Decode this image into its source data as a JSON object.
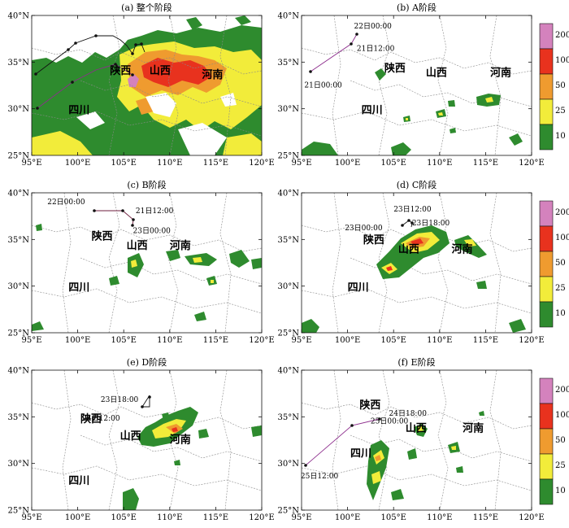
{
  "colors": {
    "c10": "#2e8b2e",
    "c25": "#f2ec3a",
    "c50": "#ef9b2f",
    "c100": "#e8321e",
    "c200": "#d482bd",
    "border": "#8a8a8a",
    "track_black": "#111111",
    "track_purple": "#8d2e8d"
  },
  "xticks": [
    "95°E",
    "100°E",
    "105°E",
    "110°E",
    "115°E",
    "120°E"
  ],
  "yticks": [
    "40°N",
    "35°N",
    "30°N",
    "25°N"
  ],
  "colorbar_labels": [
    "200",
    "100",
    "50",
    "25",
    "10"
  ],
  "panels": [
    {
      "title": "(a) 整个阶段",
      "labels": [
        {
          "t": "陕西",
          "lon": 103.5,
          "lat": 33.7
        },
        {
          "t": "山西",
          "lon": 107.8,
          "lat": 33.7
        },
        {
          "t": "河南",
          "lon": 113.5,
          "lat": 33.3
        },
        {
          "t": "四川",
          "lon": 99.0,
          "lat": 29.5
        }
      ],
      "time_labels": []
    },
    {
      "title": "(b) A阶段",
      "labels": [
        {
          "t": "陕西",
          "lon": 104.0,
          "lat": 34.0
        },
        {
          "t": "山西",
          "lon": 108.5,
          "lat": 33.5
        },
        {
          "t": "河南",
          "lon": 115.5,
          "lat": 33.5
        },
        {
          "t": "四川",
          "lon": 101.5,
          "lat": 29.5
        }
      ],
      "time_labels": [
        {
          "t": "22日00:00",
          "lon": 100.7,
          "lat": 38.6
        },
        {
          "t": "21日12:00",
          "lon": 101.0,
          "lat": 36.2
        },
        {
          "t": "21日00:00",
          "lon": 95.3,
          "lat": 32.3
        }
      ]
    },
    {
      "title": "(c) B阶段",
      "labels": [
        {
          "t": "陕西",
          "lon": 101.5,
          "lat": 35.0
        },
        {
          "t": "山西",
          "lon": 105.3,
          "lat": 34.0
        },
        {
          "t": "河南",
          "lon": 110.0,
          "lat": 34.0
        },
        {
          "t": "四川",
          "lon": 99.0,
          "lat": 29.5
        }
      ],
      "time_labels": [
        {
          "t": "22日00:00",
          "lon": 96.7,
          "lat": 38.8
        },
        {
          "t": "21日12:00",
          "lon": 106.3,
          "lat": 37.8
        },
        {
          "t": "23日00:00",
          "lon": 106.0,
          "lat": 35.7
        }
      ]
    },
    {
      "title": "(d) C阶段",
      "labels": [
        {
          "t": "陕西",
          "lon": 101.7,
          "lat": 34.6
        },
        {
          "t": "山西",
          "lon": 105.5,
          "lat": 33.6
        },
        {
          "t": "河南",
          "lon": 111.3,
          "lat": 33.6
        },
        {
          "t": "四川",
          "lon": 100.0,
          "lat": 29.5
        }
      ],
      "time_labels": [
        {
          "t": "23日12:00",
          "lon": 105.0,
          "lat": 38.0
        },
        {
          "t": "23日00:00",
          "lon": 99.7,
          "lat": 36.0
        },
        {
          "t": "23日18:00",
          "lon": 107.0,
          "lat": 36.5
        }
      ]
    },
    {
      "title": "(e) D阶段",
      "labels": [
        {
          "t": "陕西",
          "lon": 100.3,
          "lat": 34.4
        },
        {
          "t": "山西",
          "lon": 104.6,
          "lat": 32.6
        },
        {
          "t": "河南",
          "lon": 110.0,
          "lat": 32.2
        },
        {
          "t": "四川",
          "lon": 99.0,
          "lat": 27.8
        }
      ],
      "time_labels": [
        {
          "t": "23日18:00",
          "lon": 102.5,
          "lat": 36.6
        },
        {
          "t": "24日12:00",
          "lon": 100.5,
          "lat": 34.6
        }
      ]
    },
    {
      "title": "(f) E阶段",
      "labels": [
        {
          "t": "陕西",
          "lon": 101.3,
          "lat": 35.9
        },
        {
          "t": "山西",
          "lon": 106.3,
          "lat": 33.4
        },
        {
          "t": "河南",
          "lon": 112.5,
          "lat": 33.4
        },
        {
          "t": "四川",
          "lon": 100.3,
          "lat": 30.7
        }
      ],
      "time_labels": [
        {
          "t": "24日18:00",
          "lon": 104.5,
          "lat": 35.1
        },
        {
          "t": "25日00:00",
          "lon": 102.5,
          "lat": 34.3
        },
        {
          "t": "25日12:00",
          "lon": 94.9,
          "lat": 28.4
        }
      ]
    }
  ]
}
